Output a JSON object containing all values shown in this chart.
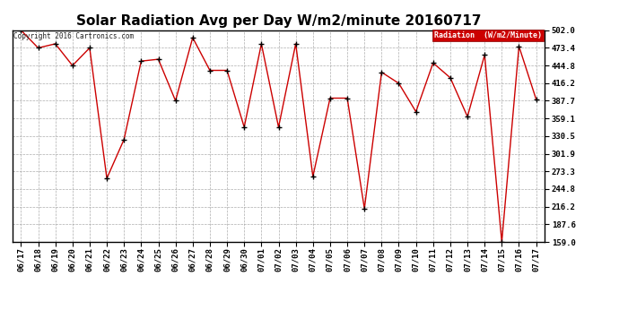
{
  "title": "Solar Radiation Avg per Day W/m2/minute 20160717",
  "copyright": "Copyright 2016 Cartronics.com",
  "legend_label": "Radiation  (W/m2/Minute)",
  "dates": [
    "06/17",
    "06/18",
    "06/19",
    "06/20",
    "06/21",
    "06/22",
    "06/23",
    "06/24",
    "06/25",
    "06/26",
    "06/27",
    "06/28",
    "06/29",
    "06/30",
    "07/01",
    "07/02",
    "07/03",
    "07/04",
    "07/05",
    "07/06",
    "07/07",
    "07/08",
    "07/09",
    "07/10",
    "07/11",
    "07/12",
    "07/13",
    "07/14",
    "07/15",
    "07/16",
    "07/17"
  ],
  "values": [
    502.0,
    473.4,
    480.0,
    444.8,
    473.4,
    262.0,
    325.0,
    452.0,
    455.0,
    387.7,
    490.0,
    437.0,
    437.0,
    345.0,
    480.0,
    345.0,
    480.0,
    265.0,
    392.0,
    392.0,
    213.0,
    434.0,
    416.0,
    370.0,
    449.0,
    425.0,
    362.0,
    462.0,
    159.0,
    476.0,
    390.0
  ],
  "ylim_min": 159.0,
  "ylim_max": 502.0,
  "yticks": [
    159.0,
    187.6,
    216.2,
    244.8,
    273.3,
    301.9,
    330.5,
    359.1,
    387.7,
    416.2,
    444.8,
    473.4,
    502.0
  ],
  "line_color": "#cc0000",
  "marker_color": "#000000",
  "bg_color": "#ffffff",
  "plot_bg_color": "#ffffff",
  "grid_color": "#999999",
  "title_fontsize": 11,
  "tick_fontsize": 6.5,
  "legend_bg": "#cc0000",
  "legend_text_color": "#ffffff",
  "border_color": "#000000"
}
